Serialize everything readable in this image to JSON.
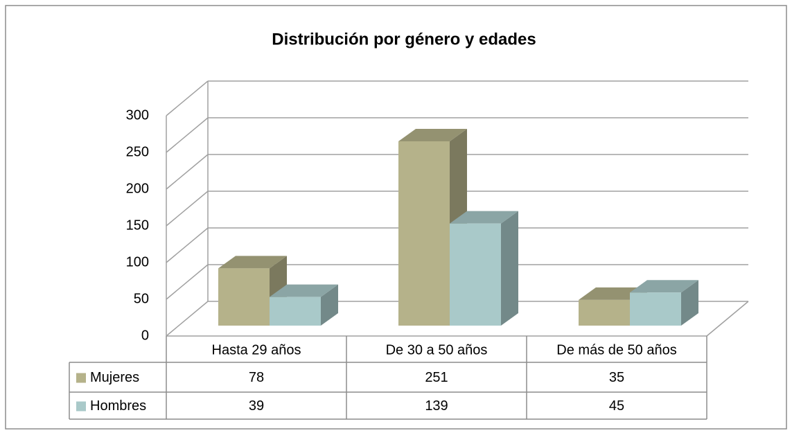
{
  "chart_data": {
    "type": "bar",
    "title": "Distribución por género y edades",
    "categories": [
      "Hasta 29 años",
      "De 30 a 50 años",
      "De más de 50 años"
    ],
    "series": [
      {
        "name": "Mujeres",
        "color": "#b5b28a",
        "values": [
          78,
          251,
          35
        ]
      },
      {
        "name": "Hombres",
        "color": "#a9c9c9",
        "values": [
          39,
          139,
          45
        ]
      }
    ],
    "ylim": [
      0,
      300
    ],
    "yticks": [
      0,
      50,
      100,
      150,
      200,
      250,
      300
    ],
    "grid": true
  }
}
